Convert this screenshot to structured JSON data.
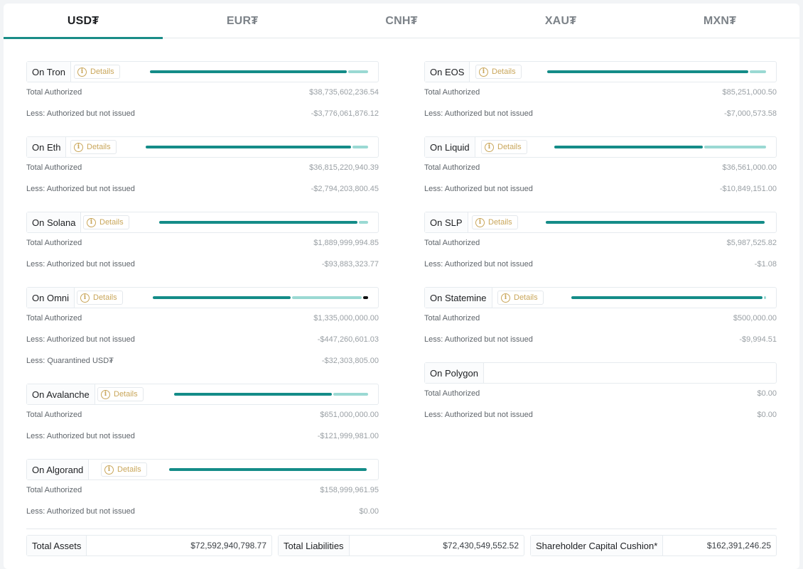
{
  "tabs": [
    {
      "label": "USD₮",
      "active": true
    },
    {
      "label": "EUR₮",
      "active": false
    },
    {
      "label": "CNH₮",
      "active": false
    },
    {
      "label": "XAU₮",
      "active": false
    },
    {
      "label": "MXN₮",
      "active": false
    }
  ],
  "details_label": "Details",
  "labels": {
    "total_authorized": "Total Authorized",
    "authorized_not_issued": "Less: Authorized but not issued",
    "quarantined": "Less: Quarantined USD₮"
  },
  "chains_left": [
    {
      "name": "On Tron",
      "total_authorized": "$38,735,602,236.54",
      "not_issued": "-$3,776,061,876.12",
      "issued_fraction": 0.903
    },
    {
      "name": "On Eth",
      "total_authorized": "$36,815,220,940.39",
      "not_issued": "-$2,794,203,800.45",
      "issued_fraction": 0.924
    },
    {
      "name": "On Solana",
      "total_authorized": "$1,889,999,994.85",
      "not_issued": "-$93,883,323.77",
      "issued_fraction": 0.95
    },
    {
      "name": "On Omni",
      "total_authorized": "$1,335,000,000.00",
      "not_issued": "-$447,260,601.03",
      "quarantined": "-$32,303,805.00",
      "issued_fraction": 0.641,
      "quarantined_fraction": 0.024
    },
    {
      "name": "On Avalanche",
      "total_authorized": "$651,000,000.00",
      "not_issued": "-$121,999,981.00",
      "issued_fraction": 0.813
    },
    {
      "name": "On Algorand",
      "total_authorized": "$158,999,961.95",
      "not_issued": "$0.00",
      "issued_fraction": 1.0
    }
  ],
  "chains_right": [
    {
      "name": "On EOS",
      "total_authorized": "$85,251,000.50",
      "not_issued": "-$7,000,573.58",
      "issued_fraction": 0.918
    },
    {
      "name": "On Liquid",
      "total_authorized": "$36,561,000.00",
      "not_issued": "-$10,849,151.00",
      "issued_fraction": 0.703
    },
    {
      "name": "On SLP",
      "total_authorized": "$5,987,525.82",
      "not_issued": "-$1.08",
      "issued_fraction": 1.0
    },
    {
      "name": "On Statemine",
      "total_authorized": "$500,000.00",
      "not_issued": "-$9,994.51",
      "issued_fraction": 0.98
    },
    {
      "name": "On Polygon",
      "total_authorized": "$0.00",
      "not_issued": "$0.00",
      "issued_fraction": 0
    }
  ],
  "totals": {
    "assets_label": "Total Assets",
    "assets_value": "$72,592,940,798.77",
    "liabilities_label": "Total Liabilities",
    "liabilities_value": "$72,430,549,552.52",
    "cushion_label": "Shareholder Capital Cushion*",
    "cushion_value": "$162,391,246.25"
  },
  "colors": {
    "accent": "#1a8c87",
    "issued_bar": "#148c88",
    "unissued_bar": "#9ad9d3",
    "quarantined_bar": "#111111",
    "details_gold": "#c9a65a"
  }
}
